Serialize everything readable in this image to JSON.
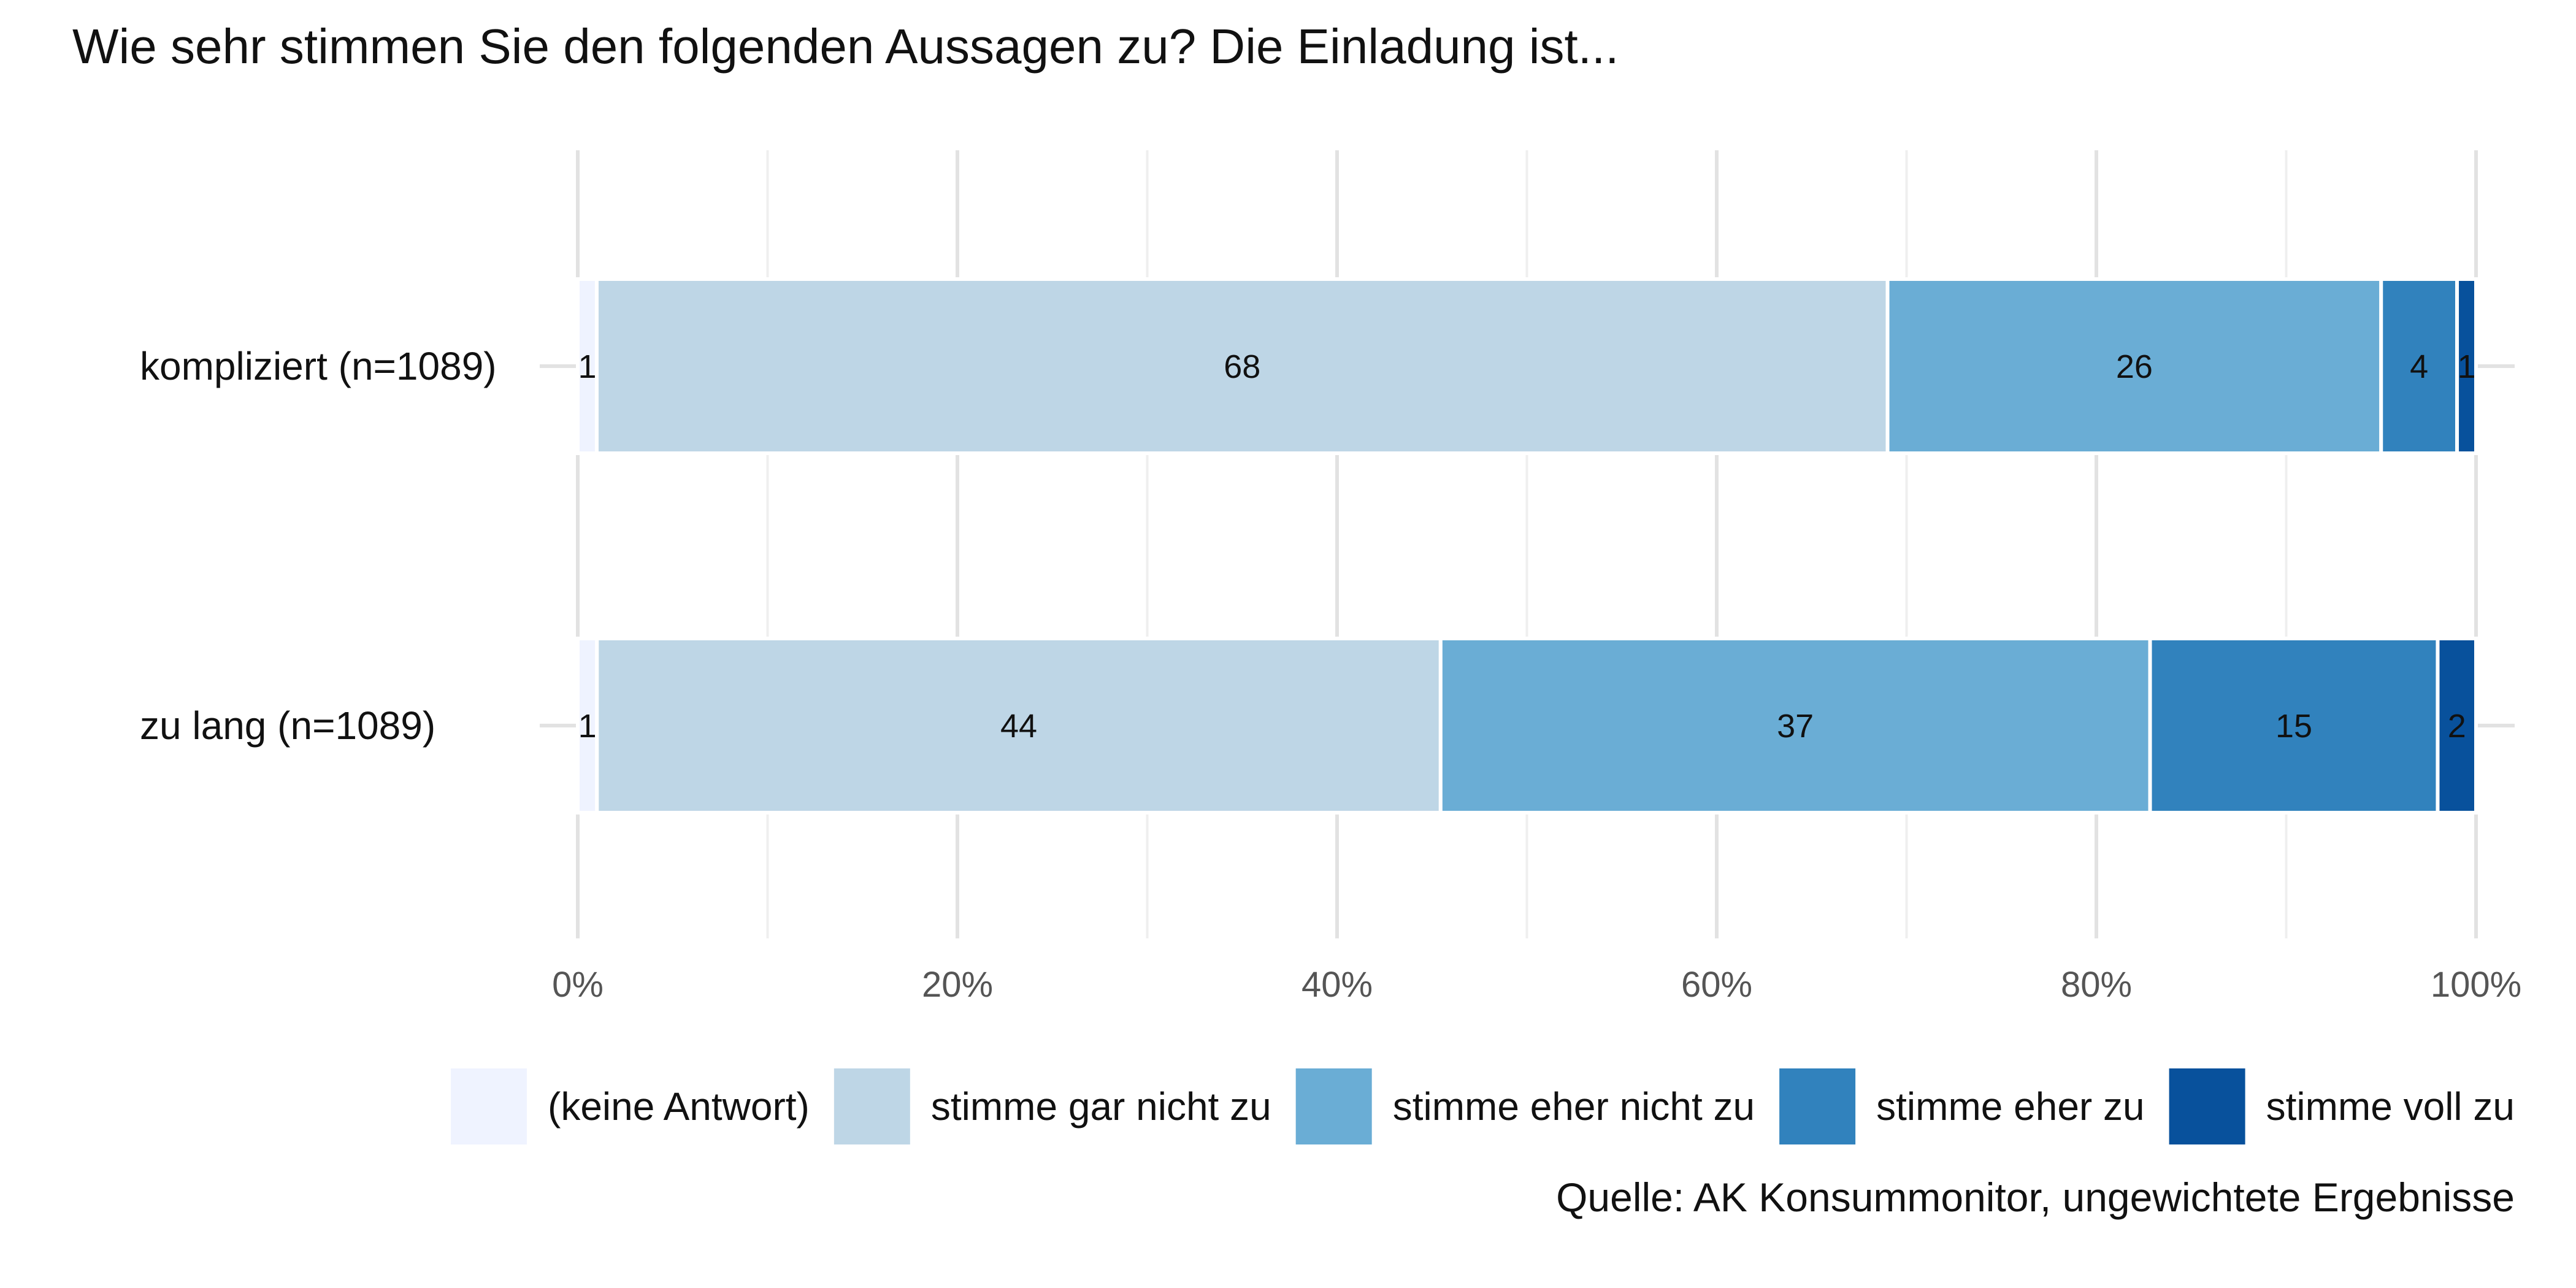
{
  "chart_data": {
    "type": "bar",
    "orientation": "horizontal",
    "stacked": true,
    "title": "Wie sehr stimmen Sie den folgenden Aussagen zu? Die Einladung ist...",
    "source": "Quelle: AK Konsummonitor, ungewichtete Ergebnisse",
    "categories": [
      "kompliziert (n=1089)",
      "zu lang (n=1089)"
    ],
    "xlim": [
      0,
      100
    ],
    "x_ticks": [
      0,
      20,
      40,
      60,
      80,
      100
    ],
    "x_tick_labels": [
      "0%",
      "20%",
      "40%",
      "60%",
      "80%",
      "100%"
    ],
    "grid": true,
    "legend_position": "bottom",
    "series": [
      {
        "name": "(keine Antwort)",
        "color": "#eff3ff",
        "values": [
          1,
          1
        ],
        "labels": [
          "1",
          "1"
        ]
      },
      {
        "name": "stimme gar nicht zu",
        "color": "#bed6e6",
        "values": [
          68,
          44
        ],
        "labels": [
          "68",
          "44"
        ]
      },
      {
        "name": "stimme eher nicht zu",
        "color": "#6aadd5",
        "values": [
          26,
          37
        ],
        "labels": [
          "26",
          "37"
        ]
      },
      {
        "name": "stimme eher zu",
        "color": "#3182bd",
        "values": [
          4,
          15
        ],
        "labels": [
          "4",
          "15"
        ]
      },
      {
        "name": "stimme voll zu",
        "color": "#08519c",
        "values": [
          1,
          2
        ],
        "labels": [
          "1",
          "2"
        ]
      }
    ]
  }
}
